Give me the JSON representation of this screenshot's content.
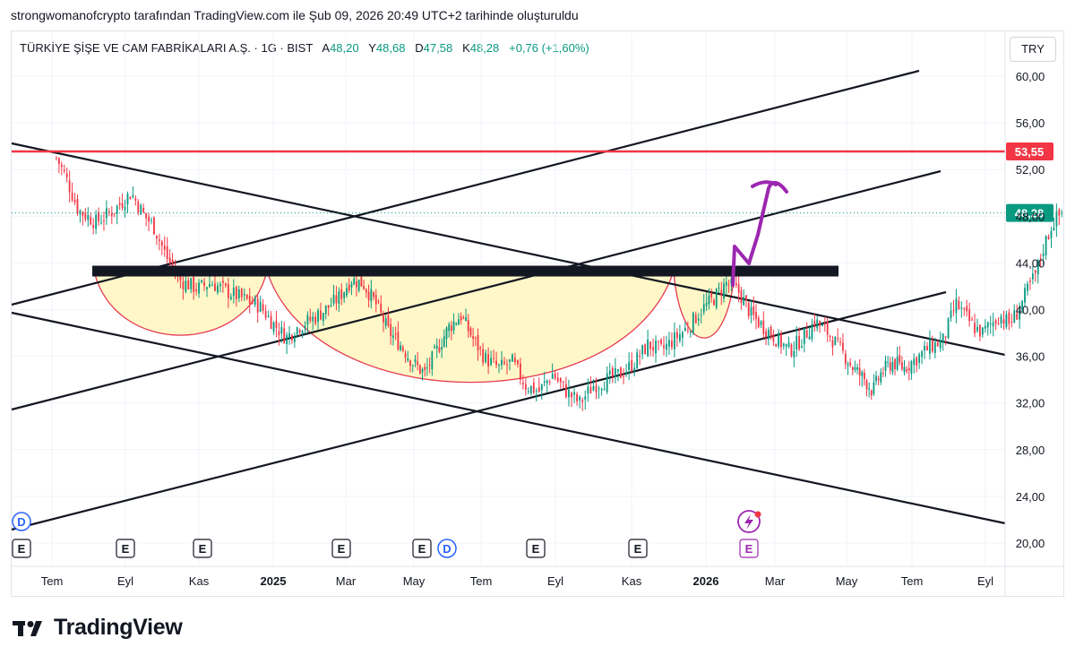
{
  "header": {
    "caption": "strongwomanofcrypto tarafından TradingView.com ile Şub 09, 2026 20:49 UTC+2 tarihinde oluşturuldu"
  },
  "legend": {
    "symbol": "TÜRKİYE ŞİŞE VE CAM FABRİKALARI A.Ş. · 1G · BIST",
    "open_key": "A",
    "open": "48,20",
    "high_key": "Y",
    "high": "48,68",
    "low_key": "D",
    "low": "47,58",
    "close_key": "K",
    "close": "48,28",
    "change": "+0,76 (+1,60%)"
  },
  "currency": "TRY",
  "brand": {
    "name": "TradingView"
  },
  "colors": {
    "up": "#089981",
    "down": "#f23645",
    "resistance": "#f23645",
    "purple_arrow": "#9c27b0",
    "cup_fill": "#fff6c2",
    "cup_line": "#e53950",
    "last_price": "#089981"
  },
  "chart_data": {
    "type": "candlestick",
    "y_axis": {
      "ticks": [
        "60,00",
        "56,00",
        "52,00",
        "48,00",
        "44,00",
        "40,00",
        "36,00",
        "32,00",
        "28,00",
        "24,00",
        "20,00"
      ],
      "ylim": [
        18.5,
        61.5
      ],
      "position": "right"
    },
    "x_axis": {
      "ticks": [
        "Tem",
        "Eyl",
        "Kas",
        "2025",
        "Mar",
        "May",
        "Tem",
        "Eyl",
        "Kas",
        "2026",
        "Mar",
        "May",
        "Tem",
        "Eyl"
      ]
    },
    "time_range_months": [
      2024.5,
      2026.75
    ],
    "close_path": [
      [
        2024.51,
        53.0
      ],
      [
        2024.53,
        51.5
      ],
      [
        2024.56,
        48.5
      ],
      [
        2024.6,
        47.5
      ],
      [
        2024.64,
        48.5
      ],
      [
        2024.68,
        50.0
      ],
      [
        2024.71,
        48.0
      ],
      [
        2024.73,
        47.2
      ],
      [
        2024.76,
        44.5
      ],
      [
        2024.79,
        42.5
      ],
      [
        2024.83,
        41.8
      ],
      [
        2024.86,
        42.3
      ],
      [
        2024.9,
        41.5
      ],
      [
        2024.94,
        40.8
      ],
      [
        2024.97,
        40.3
      ],
      [
        2025.0,
        38.8
      ],
      [
        2025.03,
        37.6
      ],
      [
        2025.06,
        38.6
      ],
      [
        2025.09,
        39.2
      ],
      [
        2025.12,
        40.0
      ],
      [
        2025.15,
        41.0
      ],
      [
        2025.18,
        42.6
      ],
      [
        2025.21,
        42.2
      ],
      [
        2025.24,
        40.5
      ],
      [
        2025.27,
        38.2
      ],
      [
        2025.3,
        37.0
      ],
      [
        2025.33,
        35.5
      ],
      [
        2025.36,
        34.5
      ],
      [
        2025.39,
        36.5
      ],
      [
        2025.42,
        38.5
      ],
      [
        2025.45,
        39.5
      ],
      [
        2025.48,
        37.5
      ],
      [
        2025.51,
        35.8
      ],
      [
        2025.54,
        35.0
      ],
      [
        2025.57,
        35.5
      ],
      [
        2025.6,
        33.5
      ],
      [
        2025.63,
        33.0
      ],
      [
        2025.66,
        34.5
      ],
      [
        2025.69,
        33.0
      ],
      [
        2025.72,
        32.0
      ],
      [
        2025.75,
        33.5
      ],
      [
        2025.78,
        34.0
      ],
      [
        2025.81,
        34.5
      ],
      [
        2025.84,
        35.5
      ],
      [
        2025.87,
        37.0
      ],
      [
        2025.9,
        36.5
      ],
      [
        2025.93,
        37.5
      ],
      [
        2025.96,
        38.5
      ],
      [
        2025.99,
        40.0
      ],
      [
        2026.02,
        41.0
      ],
      [
        2026.05,
        42.3
      ],
      [
        2026.08,
        41.5
      ],
      [
        2026.11,
        39.5
      ],
      [
        2026.14,
        38.5
      ],
      [
        2026.17,
        37.5
      ],
      [
        2026.2,
        36.5
      ],
      [
        2026.23,
        37.5
      ],
      [
        2026.26,
        39.0
      ],
      [
        2026.29,
        38.0
      ],
      [
        2026.32,
        36.5
      ],
      [
        2026.35,
        35.0
      ],
      [
        2026.38,
        34.0
      ],
      [
        2026.4,
        33.0
      ],
      [
        2026.42,
        34.5
      ],
      [
        2026.45,
        35.5
      ],
      [
        2026.48,
        35.0
      ],
      [
        2026.51,
        35.8
      ],
      [
        2026.54,
        36.8
      ],
      [
        2026.57,
        37.3
      ],
      [
        2026.6,
        40.5
      ],
      [
        2026.62,
        39.5
      ],
      [
        2026.64,
        38.5
      ],
      [
        2026.66,
        38.0
      ],
      [
        2026.68,
        38.8
      ],
      [
        2026.7,
        39.5
      ],
      [
        2026.72,
        38.8
      ],
      [
        2026.74,
        39.8
      ],
      [
        2026.76,
        41.5
      ],
      [
        2026.78,
        43.0
      ],
      [
        2026.8,
        45.5
      ],
      [
        2026.82,
        47.5
      ],
      [
        2026.84,
        48.28
      ]
    ],
    "resistance_line": {
      "value": 53.55,
      "label": "53,55"
    },
    "last_price": {
      "value": 48.28,
      "label": "48,28"
    },
    "neckline_value": 43.3
  }
}
